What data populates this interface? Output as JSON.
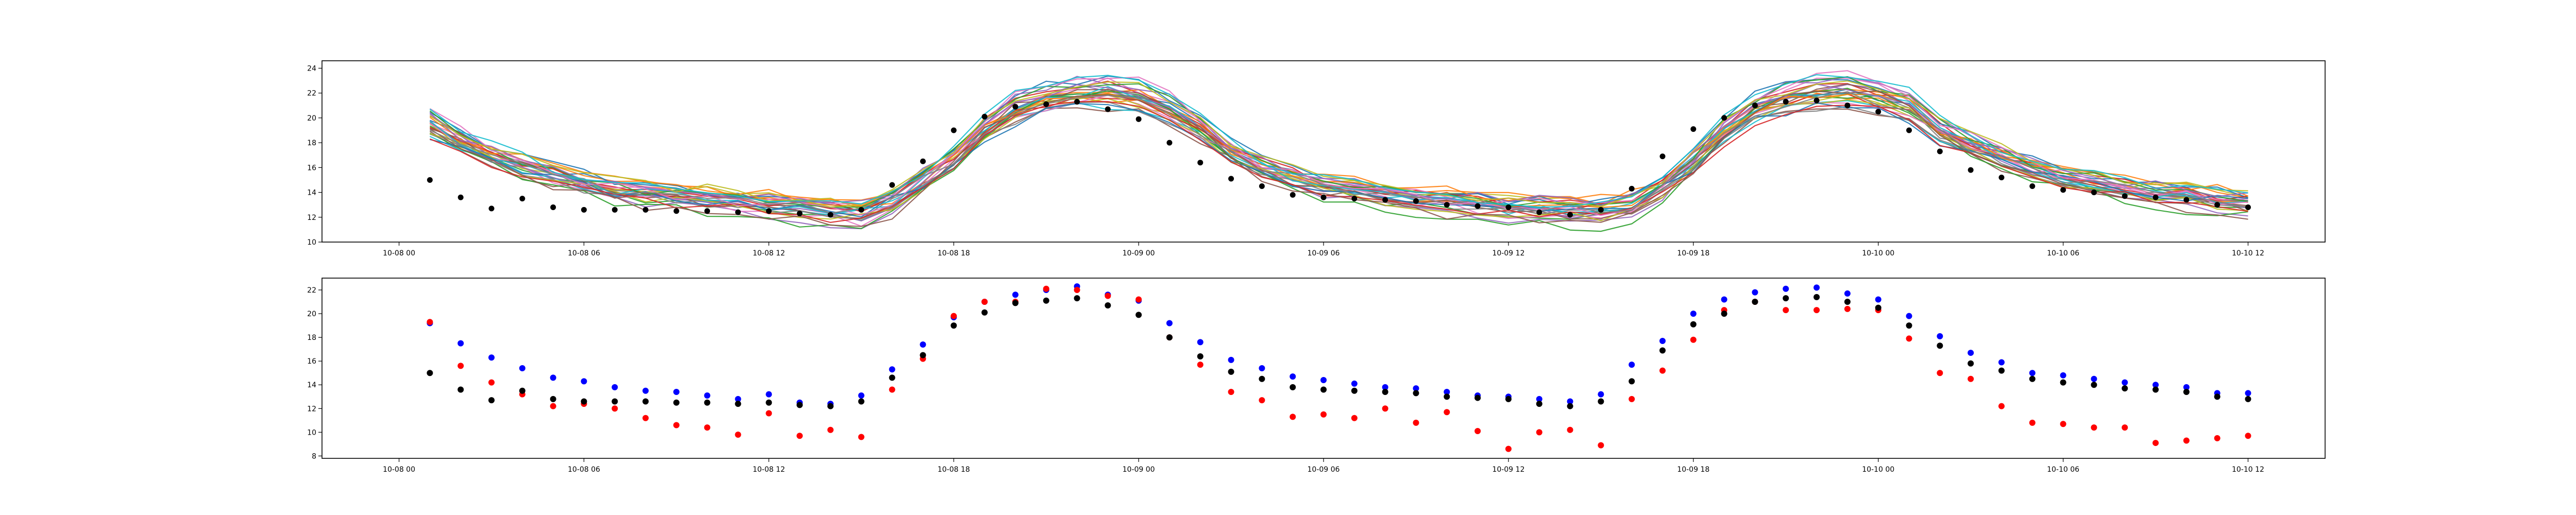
{
  "chart_data": [
    {
      "type": "line",
      "title": "",
      "xlabel": "",
      "ylabel": "",
      "x_range": [
        "2021-10-07T21:30",
        "2021-10-10T14:30"
      ],
      "ylim": [
        10,
        24.6
      ],
      "grid": false,
      "legend": "none",
      "x_ticks": [
        "10-08 00",
        "10-08 06",
        "10-08 12",
        "10-08 18",
        "10-09 00",
        "10-09 06",
        "10-09 12",
        "10-09 18",
        "10-10 00",
        "10-10 06",
        "10-10 12"
      ],
      "y_ticks": [
        10,
        12,
        14,
        16,
        18,
        20,
        22,
        24
      ],
      "x_times": [
        "2021-10-08T01:00",
        "2021-10-08T02:00",
        "2021-10-08T03:00",
        "2021-10-08T04:00",
        "2021-10-08T05:00",
        "2021-10-08T06:00",
        "2021-10-08T07:00",
        "2021-10-08T08:00",
        "2021-10-08T09:00",
        "2021-10-08T10:00",
        "2021-10-08T11:00",
        "2021-10-08T12:00",
        "2021-10-08T13:00",
        "2021-10-08T14:00",
        "2021-10-08T15:00",
        "2021-10-08T16:00",
        "2021-10-08T17:00",
        "2021-10-08T18:00",
        "2021-10-08T19:00",
        "2021-10-08T20:00",
        "2021-10-08T21:00",
        "2021-10-08T22:00",
        "2021-10-08T23:00",
        "2021-10-09T00:00",
        "2021-10-09T01:00",
        "2021-10-09T02:00",
        "2021-10-09T03:00",
        "2021-10-09T04:00",
        "2021-10-09T05:00",
        "2021-10-09T06:00",
        "2021-10-09T07:00",
        "2021-10-09T08:00",
        "2021-10-09T09:00",
        "2021-10-09T10:00",
        "2021-10-09T11:00",
        "2021-10-09T12:00",
        "2021-10-09T13:00",
        "2021-10-09T14:00",
        "2021-10-09T15:00",
        "2021-10-09T16:00",
        "2021-10-09T17:00",
        "2021-10-09T18:00",
        "2021-10-09T19:00",
        "2021-10-09T20:00",
        "2021-10-09T21:00",
        "2021-10-09T22:00",
        "2021-10-09T23:00",
        "2021-10-10T00:00",
        "2021-10-10T01:00",
        "2021-10-10T02:00",
        "2021-10-10T03:00",
        "2021-10-10T04:00",
        "2021-10-10T05:00",
        "2021-10-10T06:00",
        "2021-10-10T07:00",
        "2021-10-10T08:00",
        "2021-10-10T09:00",
        "2021-10-10T10:00",
        "2021-10-10T11:00",
        "2021-10-10T12:00"
      ],
      "ensemble_base": [
        19.6,
        18.2,
        17.0,
        16.2,
        15.4,
        14.8,
        14.2,
        13.9,
        13.7,
        13.5,
        13.2,
        13.0,
        12.8,
        12.5,
        12.3,
        13.3,
        15.0,
        16.8,
        19.2,
        20.8,
        21.6,
        22.1,
        22.2,
        21.8,
        20.8,
        19.2,
        17.2,
        16.0,
        15.2,
        14.6,
        14.2,
        13.8,
        13.5,
        13.3,
        13.0,
        12.8,
        12.7,
        12.6,
        12.5,
        13.0,
        14.5,
        16.5,
        19.0,
        20.8,
        21.6,
        22.2,
        22.3,
        21.8,
        21.0,
        19.0,
        17.8,
        16.8,
        16.0,
        15.3,
        14.8,
        14.3,
        14.0,
        13.7,
        13.4,
        13.2
      ],
      "ensemble_members": 30,
      "ensemble_colors": [
        "#1f77b4",
        "#ff7f0e",
        "#2ca02c",
        "#d62728",
        "#9467bd",
        "#8c564b",
        "#e377c2",
        "#7f7f7f",
        "#bcbd22",
        "#17becf"
      ],
      "observed_points": {
        "color": "#000000",
        "x": [
          "2021-10-08T01:00",
          "2021-10-08T02:00",
          "2021-10-08T03:00",
          "2021-10-08T04:00",
          "2021-10-08T05:00",
          "2021-10-08T06:00",
          "2021-10-08T07:00",
          "2021-10-08T08:00",
          "2021-10-08T09:00",
          "2021-10-08T10:00",
          "2021-10-08T11:00",
          "2021-10-08T12:00",
          "2021-10-08T13:00",
          "2021-10-08T14:00",
          "2021-10-08T15:00",
          "2021-10-08T16:00",
          "2021-10-08T17:00",
          "2021-10-08T18:00",
          "2021-10-08T19:00",
          "2021-10-08T20:00",
          "2021-10-08T21:00",
          "2021-10-08T22:00",
          "2021-10-08T23:00",
          "2021-10-09T00:00",
          "2021-10-09T01:00",
          "2021-10-09T02:00",
          "2021-10-09T03:00",
          "2021-10-09T04:00",
          "2021-10-09T05:00",
          "2021-10-09T06:00",
          "2021-10-09T07:00",
          "2021-10-09T08:00",
          "2021-10-09T09:00",
          "2021-10-09T10:00",
          "2021-10-09T11:00",
          "2021-10-09T12:00",
          "2021-10-09T13:00",
          "2021-10-09T14:00",
          "2021-10-09T15:00",
          "2021-10-09T16:00",
          "2021-10-09T17:00",
          "2021-10-09T18:00",
          "2021-10-09T19:00",
          "2021-10-09T20:00",
          "2021-10-09T21:00",
          "2021-10-09T22:00",
          "2021-10-09T23:00",
          "2021-10-10T00:00",
          "2021-10-10T01:00",
          "2021-10-10T02:00",
          "2021-10-10T03:00",
          "2021-10-10T04:00",
          "2021-10-10T05:00",
          "2021-10-10T06:00",
          "2021-10-10T07:00",
          "2021-10-10T08:00",
          "2021-10-10T09:00",
          "2021-10-10T10:00",
          "2021-10-10T11:00",
          "2021-10-10T12:00"
        ],
        "y": [
          15.0,
          13.6,
          12.7,
          13.5,
          12.8,
          12.6,
          12.6,
          12.6,
          12.5,
          12.5,
          12.4,
          12.5,
          12.3,
          12.2,
          12.6,
          14.6,
          16.5,
          19.0,
          20.1,
          20.9,
          21.1,
          21.3,
          20.7,
          19.9,
          18.0,
          16.4,
          15.1,
          14.5,
          13.8,
          13.6,
          13.5,
          13.4,
          13.3,
          13.0,
          12.9,
          12.8,
          12.4,
          12.2,
          12.6,
          14.3,
          16.9,
          19.1,
          20.0,
          21.0,
          21.3,
          21.4,
          21.0,
          20.5,
          19.0,
          17.3,
          15.8,
          15.2,
          14.5,
          14.2,
          14.0,
          13.7,
          13.6,
          13.4,
          13.0,
          12.8
        ]
      }
    },
    {
      "type": "scatter",
      "title": "",
      "xlabel": "",
      "ylabel": "",
      "x_range": [
        "2021-10-07T21:30",
        "2021-10-10T14:30"
      ],
      "ylim": [
        7.8,
        23.0
      ],
      "grid": false,
      "legend": "none",
      "x_ticks": [
        "10-08 00",
        "10-08 06",
        "10-08 12",
        "10-08 18",
        "10-09 00",
        "10-09 06",
        "10-09 12",
        "10-09 18",
        "10-10 00",
        "10-10 06",
        "10-10 12"
      ],
      "y_ticks": [
        8,
        10,
        12,
        14,
        16,
        18,
        20,
        22
      ],
      "x_times": [
        "2021-10-08T01:00",
        "2021-10-08T02:00",
        "2021-10-08T03:00",
        "2021-10-08T04:00",
        "2021-10-08T05:00",
        "2021-10-08T06:00",
        "2021-10-08T07:00",
        "2021-10-08T08:00",
        "2021-10-08T09:00",
        "2021-10-08T10:00",
        "2021-10-08T11:00",
        "2021-10-08T12:00",
        "2021-10-08T13:00",
        "2021-10-08T14:00",
        "2021-10-08T15:00",
        "2021-10-08T16:00",
        "2021-10-08T17:00",
        "2021-10-08T18:00",
        "2021-10-08T19:00",
        "2021-10-08T20:00",
        "2021-10-08T21:00",
        "2021-10-08T22:00",
        "2021-10-08T23:00",
        "2021-10-09T00:00",
        "2021-10-09T01:00",
        "2021-10-09T02:00",
        "2021-10-09T03:00",
        "2021-10-09T04:00",
        "2021-10-09T05:00",
        "2021-10-09T06:00",
        "2021-10-09T07:00",
        "2021-10-09T08:00",
        "2021-10-09T09:00",
        "2021-10-09T10:00",
        "2021-10-09T11:00",
        "2021-10-09T12:00",
        "2021-10-09T13:00",
        "2021-10-09T14:00",
        "2021-10-09T15:00",
        "2021-10-09T16:00",
        "2021-10-09T17:00",
        "2021-10-09T18:00",
        "2021-10-09T19:00",
        "2021-10-09T20:00",
        "2021-10-09T21:00",
        "2021-10-09T22:00",
        "2021-10-09T23:00",
        "2021-10-10T00:00",
        "2021-10-10T01:00",
        "2021-10-10T02:00",
        "2021-10-10T03:00",
        "2021-10-10T04:00",
        "2021-10-10T05:00",
        "2021-10-10T06:00",
        "2021-10-10T07:00",
        "2021-10-10T08:00",
        "2021-10-10T09:00",
        "2021-10-10T10:00",
        "2021-10-10T11:00",
        "2021-10-10T12:00"
      ],
      "series": [
        {
          "color": "#0000ff",
          "y": [
            19.2,
            17.5,
            16.3,
            15.4,
            14.6,
            14.3,
            13.8,
            13.5,
            13.4,
            13.1,
            12.8,
            13.2,
            12.5,
            12.4,
            13.1,
            15.3,
            17.4,
            19.7,
            21.0,
            21.6,
            22.0,
            22.3,
            21.6,
            21.1,
            19.2,
            17.6,
            16.1,
            15.4,
            14.7,
            14.4,
            14.1,
            13.8,
            13.7,
            13.4,
            13.1,
            13.0,
            12.8,
            12.6,
            13.2,
            15.7,
            17.7,
            20.0,
            21.2,
            21.8,
            22.1,
            22.2,
            21.7,
            21.2,
            19.8,
            18.1,
            16.7,
            15.9,
            15.0,
            14.8,
            14.5,
            14.2,
            14.0,
            13.8,
            13.3,
            13.3
          ]
        },
        {
          "color": "#ff0000",
          "y": [
            19.3,
            15.6,
            14.2,
            13.2,
            12.2,
            12.4,
            12.0,
            11.2,
            10.6,
            10.4,
            9.8,
            11.6,
            9.7,
            10.2,
            9.6,
            13.6,
            16.2,
            19.8,
            21.0,
            21.0,
            22.1,
            22.0,
            21.5,
            21.2,
            18.0,
            15.7,
            13.4,
            12.7,
            11.3,
            11.5,
            11.2,
            12.0,
            10.8,
            11.7,
            10.1,
            8.6,
            10.0,
            10.2,
            8.9,
            12.8,
            15.2,
            17.8,
            20.3,
            21.0,
            20.3,
            20.3,
            20.4,
            20.3,
            17.9,
            15.0,
            14.5,
            12.2,
            10.8,
            10.7,
            10.4,
            10.4,
            9.1,
            9.3,
            9.5,
            9.7
          ]
        },
        {
          "color": "#000000",
          "y": [
            15.0,
            13.6,
            12.7,
            13.5,
            12.8,
            12.6,
            12.6,
            12.6,
            12.5,
            12.5,
            12.4,
            12.5,
            12.3,
            12.2,
            12.6,
            14.6,
            16.5,
            19.0,
            20.1,
            20.9,
            21.1,
            21.3,
            20.7,
            19.9,
            18.0,
            16.4,
            15.1,
            14.5,
            13.8,
            13.6,
            13.5,
            13.4,
            13.3,
            13.0,
            12.9,
            12.8,
            12.4,
            12.2,
            12.6,
            14.3,
            16.9,
            19.1,
            20.0,
            21.0,
            21.3,
            21.4,
            21.0,
            20.5,
            19.0,
            17.3,
            15.8,
            15.2,
            14.5,
            14.2,
            14.0,
            13.7,
            13.6,
            13.4,
            13.0,
            12.8
          ]
        }
      ]
    }
  ]
}
